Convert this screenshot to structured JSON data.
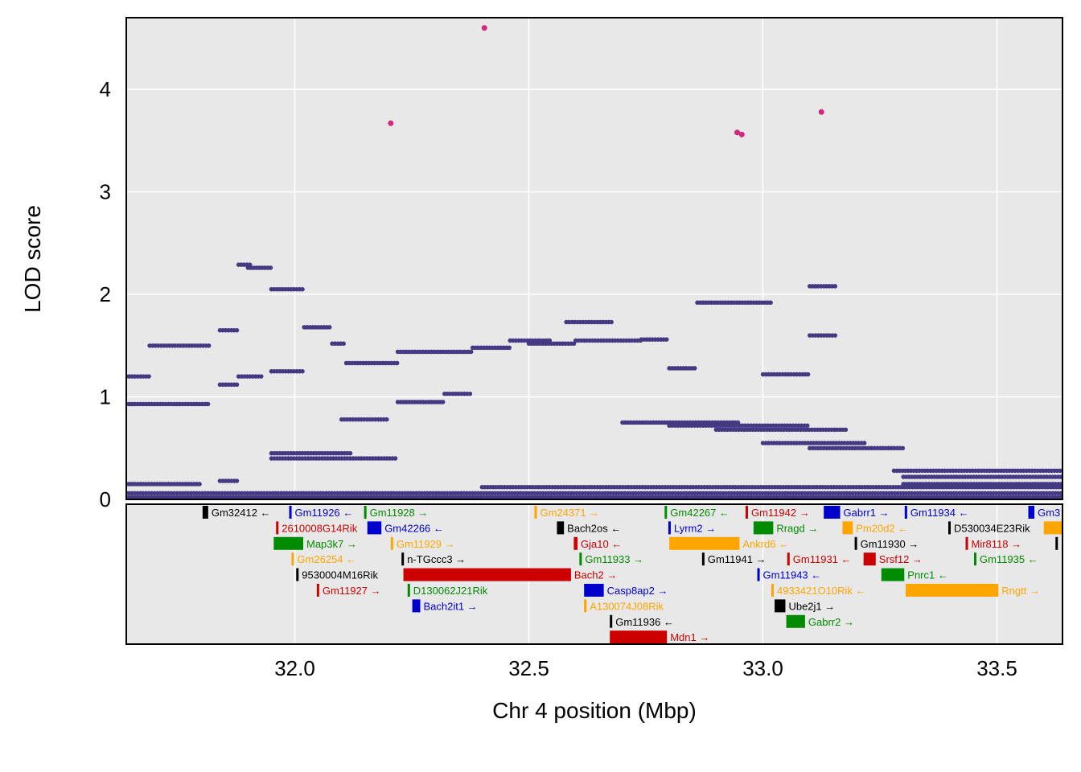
{
  "chart_data": {
    "type": "scatter",
    "xlabel": "Chr 4 position (Mbp)",
    "ylabel": "LOD score",
    "xlim": [
      31.64,
      33.64
    ],
    "ylim": [
      0,
      4.7
    ],
    "x_ticks": [
      {
        "value": 32.0,
        "label": "32.0"
      },
      {
        "value": 32.5,
        "label": "32.5"
      },
      {
        "value": 33.0,
        "label": "33.0"
      },
      {
        "value": 33.5,
        "label": "33.5"
      }
    ],
    "y_ticks": [
      {
        "value": 0,
        "label": "0"
      },
      {
        "value": 1,
        "label": "1"
      },
      {
        "value": 2,
        "label": "2"
      },
      {
        "value": 3,
        "label": "3"
      },
      {
        "value": 4,
        "label": "4"
      }
    ],
    "grid": true,
    "colors": {
      "snp": "#443983",
      "top": "#d4267d",
      "panel": "#e8e8e8",
      "grid": "#ffffff"
    },
    "top_points": [
      [
        32.405,
        4.6
      ],
      [
        32.205,
        3.67
      ],
      [
        32.945,
        3.58
      ],
      [
        32.955,
        3.56
      ],
      [
        33.125,
        3.78
      ]
    ],
    "segments": [
      {
        "x0": 31.64,
        "x1": 31.69,
        "y": 1.2
      },
      {
        "x0": 31.64,
        "x1": 31.82,
        "y": 0.93
      },
      {
        "x0": 31.69,
        "x1": 31.82,
        "y": 1.5
      },
      {
        "x0": 31.64,
        "x1": 31.8,
        "y": 0.15
      },
      {
        "x0": 31.84,
        "x1": 31.88,
        "y": 1.65
      },
      {
        "x0": 31.84,
        "x1": 31.88,
        "y": 1.12
      },
      {
        "x0": 31.84,
        "x1": 31.88,
        "y": 0.18
      },
      {
        "x0": 31.88,
        "x1": 31.91,
        "y": 2.29
      },
      {
        "x0": 31.9,
        "x1": 31.95,
        "y": 2.26
      },
      {
        "x0": 31.88,
        "x1": 31.93,
        "y": 1.2
      },
      {
        "x0": 31.95,
        "x1": 32.02,
        "y": 2.05
      },
      {
        "x0": 31.95,
        "x1": 32.02,
        "y": 1.25
      },
      {
        "x0": 31.95,
        "x1": 32.12,
        "y": 0.45
      },
      {
        "x0": 32.02,
        "x1": 32.08,
        "y": 1.68
      },
      {
        "x0": 32.08,
        "x1": 32.11,
        "y": 1.52
      },
      {
        "x0": 32.11,
        "x1": 32.22,
        "y": 1.33
      },
      {
        "x0": 32.1,
        "x1": 32.2,
        "y": 0.78
      },
      {
        "x0": 31.95,
        "x1": 32.22,
        "y": 0.4
      },
      {
        "x0": 32.22,
        "x1": 32.38,
        "y": 1.44
      },
      {
        "x0": 32.22,
        "x1": 32.32,
        "y": 0.95
      },
      {
        "x0": 32.32,
        "x1": 32.38,
        "y": 1.03
      },
      {
        "x0": 32.38,
        "x1": 32.46,
        "y": 1.48
      },
      {
        "x0": 32.46,
        "x1": 32.55,
        "y": 1.55
      },
      {
        "x0": 32.5,
        "x1": 32.6,
        "y": 1.52
      },
      {
        "x0": 32.58,
        "x1": 32.68,
        "y": 1.73
      },
      {
        "x0": 32.6,
        "x1": 32.74,
        "y": 1.55
      },
      {
        "x0": 32.74,
        "x1": 32.8,
        "y": 1.56
      },
      {
        "x0": 32.8,
        "x1": 32.86,
        "y": 1.28
      },
      {
        "x0": 32.7,
        "x1": 32.95,
        "y": 0.75
      },
      {
        "x0": 32.8,
        "x1": 33.1,
        "y": 0.72
      },
      {
        "x0": 32.9,
        "x1": 33.18,
        "y": 0.68
      },
      {
        "x0": 33.0,
        "x1": 33.22,
        "y": 0.55
      },
      {
        "x0": 33.1,
        "x1": 33.3,
        "y": 0.5
      },
      {
        "x0": 33.28,
        "x1": 33.64,
        "y": 0.28
      },
      {
        "x0": 33.3,
        "x1": 33.64,
        "y": 0.22
      },
      {
        "x0": 33.3,
        "x1": 33.64,
        "y": 0.15
      },
      {
        "x0": 32.86,
        "x1": 33.02,
        "y": 1.92
      },
      {
        "x0": 33.0,
        "x1": 33.1,
        "y": 1.22
      },
      {
        "x0": 33.1,
        "x1": 33.16,
        "y": 2.08
      },
      {
        "x0": 33.1,
        "x1": 33.16,
        "y": 1.6
      },
      {
        "x0": 31.64,
        "x1": 33.64,
        "y": 0.06
      },
      {
        "x0": 32.4,
        "x1": 33.64,
        "y": 0.12
      },
      {
        "x0": 31.64,
        "x1": 33.64,
        "y": 0.02
      }
    ],
    "genes": [
      {
        "name": "Gm32412",
        "start": 31.803,
        "end": 31.815,
        "row": 0,
        "strand": "←",
        "color": "#000000"
      },
      {
        "name": "Gm11926",
        "start": 31.988,
        "end": 31.991,
        "row": 0,
        "strand": "←",
        "color": "#0000cd"
      },
      {
        "name": "Gm11928",
        "start": 32.148,
        "end": 32.151,
        "row": 0,
        "strand": "→",
        "color": "#008b00"
      },
      {
        "name": "Gm24371",
        "start": 32.512,
        "end": 32.515,
        "row": 0,
        "strand": "→",
        "color": "#ffa500"
      },
      {
        "name": "Gm42267",
        "start": 32.79,
        "end": 32.793,
        "row": 0,
        "strand": "←",
        "color": "#008b00"
      },
      {
        "name": "Gm11942",
        "start": 32.963,
        "end": 32.966,
        "row": 0,
        "strand": "→",
        "color": "#cd0000"
      },
      {
        "name": "Gabrr1",
        "start": 33.13,
        "end": 33.165,
        "row": 0,
        "strand": "→",
        "color": "#0000cd"
      },
      {
        "name": "Gm11934",
        "start": 33.303,
        "end": 33.306,
        "row": 0,
        "strand": "←",
        "color": "#0000cd"
      },
      {
        "name": "Gm3",
        "start": 33.567,
        "end": 33.58,
        "row": 0,
        "strand": "",
        "color": "#0000cd"
      },
      {
        "name": "2610008G14Rik",
        "start": 31.96,
        "end": 31.963,
        "row": 1,
        "strand": "",
        "color": "#cd0000"
      },
      {
        "name": "Gm42266",
        "start": 32.155,
        "end": 32.185,
        "row": 1,
        "strand": "←",
        "color": "#0000cd"
      },
      {
        "name": "Bach2os",
        "start": 32.56,
        "end": 32.575,
        "row": 1,
        "strand": "←",
        "color": "#000000"
      },
      {
        "name": "Lyrm2",
        "start": 32.798,
        "end": 32.801,
        "row": 1,
        "strand": "→",
        "color": "#0000cd"
      },
      {
        "name": "Rragd",
        "start": 32.98,
        "end": 33.022,
        "row": 1,
        "strand": "→",
        "color": "#008b00"
      },
      {
        "name": "Pm20d2",
        "start": 33.17,
        "end": 33.192,
        "row": 1,
        "strand": "←",
        "color": "#ffa500"
      },
      {
        "name": "D530034E23Rik",
        "start": 33.396,
        "end": 33.399,
        "row": 1,
        "strand": "",
        "color": "#000000"
      },
      {
        "name": "",
        "start": 33.6,
        "end": 33.64,
        "row": 1,
        "strand": "",
        "color": "#ffa500"
      },
      {
        "name": "Map3k7",
        "start": 31.955,
        "end": 32.018,
        "row": 2,
        "strand": "→",
        "color": "#008b00"
      },
      {
        "name": "Gm11929",
        "start": 32.205,
        "end": 32.208,
        "row": 2,
        "strand": "→",
        "color": "#ffa500"
      },
      {
        "name": "Gja10",
        "start": 32.596,
        "end": 32.604,
        "row": 2,
        "strand": "←",
        "color": "#cd0000"
      },
      {
        "name": "Ankrd6",
        "start": 32.8,
        "end": 32.95,
        "row": 2,
        "strand": "←",
        "color": "#ffa500"
      },
      {
        "name": "Gm11930",
        "start": 33.196,
        "end": 33.199,
        "row": 2,
        "strand": "→",
        "color": "#000000"
      },
      {
        "name": "Mir8118",
        "start": 33.433,
        "end": 33.436,
        "row": 2,
        "strand": "→",
        "color": "#cd0000"
      },
      {
        "name": "",
        "start": 33.625,
        "end": 33.628,
        "row": 2,
        "strand": "",
        "color": "#000000"
      },
      {
        "name": "Gm26254",
        "start": 31.993,
        "end": 31.996,
        "row": 3,
        "strand": "←",
        "color": "#ffa500"
      },
      {
        "name": "n-TGccc3",
        "start": 32.228,
        "end": 32.231,
        "row": 3,
        "strand": "→",
        "color": "#000000"
      },
      {
        "name": "Gm11933",
        "start": 32.608,
        "end": 32.611,
        "row": 3,
        "strand": "→",
        "color": "#008b00"
      },
      {
        "name": "Gm11941",
        "start": 32.87,
        "end": 32.873,
        "row": 3,
        "strand": "→",
        "color": "#000000"
      },
      {
        "name": "Gm11931",
        "start": 33.052,
        "end": 33.055,
        "row": 3,
        "strand": "←",
        "color": "#cd0000"
      },
      {
        "name": "Srsf12",
        "start": 33.215,
        "end": 33.241,
        "row": 3,
        "strand": "→",
        "color": "#cd0000"
      },
      {
        "name": "Gm11935",
        "start": 33.451,
        "end": 33.454,
        "row": 3,
        "strand": "←",
        "color": "#008b00"
      },
      {
        "name": "9530004M16Rik",
        "start": 32.003,
        "end": 32.006,
        "row": 4,
        "strand": "",
        "color": "#000000"
      },
      {
        "name": "Bach2",
        "start": 32.232,
        "end": 32.59,
        "row": 4,
        "strand": "→",
        "color": "#cd0000"
      },
      {
        "name": "Gm11943",
        "start": 32.988,
        "end": 32.991,
        "row": 4,
        "strand": "←",
        "color": "#0000cd"
      },
      {
        "name": "Pnrc1",
        "start": 33.253,
        "end": 33.302,
        "row": 4,
        "strand": "←",
        "color": "#008b00"
      },
      {
        "name": "Gm11927",
        "start": 32.047,
        "end": 32.05,
        "row": 5,
        "strand": "→",
        "color": "#cd0000"
      },
      {
        "name": "D130062J21Rik",
        "start": 32.241,
        "end": 32.244,
        "row": 5,
        "strand": "",
        "color": "#008b00"
      },
      {
        "name": "Casp8ap2",
        "start": 32.618,
        "end": 32.66,
        "row": 5,
        "strand": "→",
        "color": "#0000cd"
      },
      {
        "name": "4933421O10Rik",
        "start": 33.018,
        "end": 33.021,
        "row": 5,
        "strand": "←",
        "color": "#ffa500"
      },
      {
        "name": "Rngtt",
        "start": 33.305,
        "end": 33.503,
        "row": 5,
        "strand": "→",
        "color": "#ffa500"
      },
      {
        "name": "Bach2it1",
        "start": 32.251,
        "end": 32.268,
        "row": 6,
        "strand": "→",
        "color": "#0000cd"
      },
      {
        "name": "A130074J08Rik",
        "start": 32.618,
        "end": 32.621,
        "row": 6,
        "strand": "",
        "color": "#ffa500"
      },
      {
        "name": "Ube2j1",
        "start": 33.025,
        "end": 33.048,
        "row": 6,
        "strand": "→",
        "color": "#000000"
      },
      {
        "name": "Gm11936",
        "start": 32.673,
        "end": 32.676,
        "row": 7,
        "strand": "←",
        "color": "#000000"
      },
      {
        "name": "Gabrr2",
        "start": 33.05,
        "end": 33.09,
        "row": 7,
        "strand": "→",
        "color": "#008b00"
      },
      {
        "name": "Mdn1",
        "start": 32.673,
        "end": 32.795,
        "row": 8,
        "strand": "→",
        "color": "#cd0000"
      }
    ]
  }
}
